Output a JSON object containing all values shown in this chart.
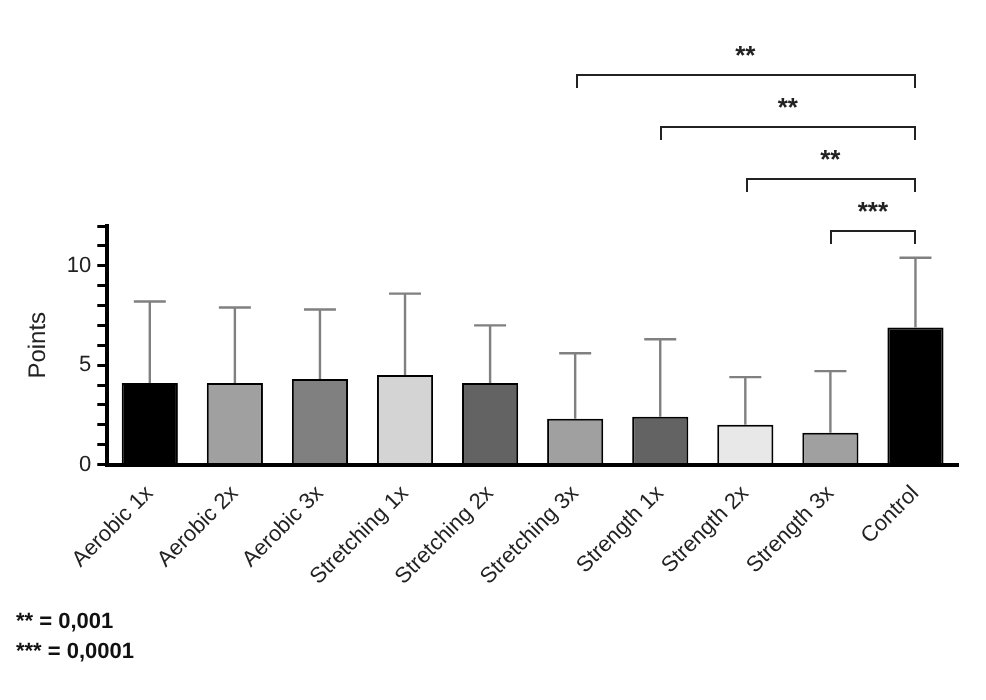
{
  "chart_data": {
    "type": "bar",
    "ylabel": "Points",
    "categories": [
      "Aerobic 1x",
      "Aerobic 2x",
      "Aerobic 3x",
      "Stretching 1x",
      "Stretching 2x",
      "Stretching 3x",
      "Strength 1x",
      "Strength 2x",
      "Strength 3x",
      "Control"
    ],
    "values": [
      4.1,
      4.1,
      4.3,
      4.5,
      4.1,
      2.3,
      2.4,
      2.0,
      1.6,
      6.9
    ],
    "colors": [
      "#000000",
      "#a0a0a0",
      "#808080",
      "#d4d4d4",
      "#636363",
      "#a0a0a0",
      "#636363",
      "#e8e8e8",
      "#a0a0a0",
      "#000000"
    ],
    "errors": [
      [
        4.1,
        8.2
      ],
      [
        4.1,
        7.9
      ],
      [
        4.3,
        7.8
      ],
      [
        4.5,
        8.6
      ],
      [
        4.1,
        7.0
      ],
      [
        2.3,
        5.6
      ],
      [
        2.4,
        6.3
      ],
      [
        2.0,
        4.4
      ],
      [
        1.6,
        4.7
      ],
      [
        6.9,
        10.4
      ]
    ],
    "ylim": [
      0,
      12
    ],
    "yticks": [
      0,
      {
        "value": 1,
        "label": null
      },
      {
        "value": 2,
        "label": null
      },
      {
        "value": 3,
        "label": null
      },
      {
        "value": 4,
        "label": null
      },
      5,
      {
        "value": 6,
        "label": null
      },
      {
        "value": 7,
        "label": null
      },
      {
        "value": 8,
        "label": null
      },
      {
        "value": 9,
        "label": null
      },
      10,
      {
        "value": 11,
        "label": null
      },
      {
        "value": 12,
        "label": null
      }
    ],
    "grid": false,
    "legend": false,
    "annotations": [
      "**",
      "**",
      "**",
      "***",
      "** = 0,001",
      "*** = 0,0001"
    ]
  }
}
